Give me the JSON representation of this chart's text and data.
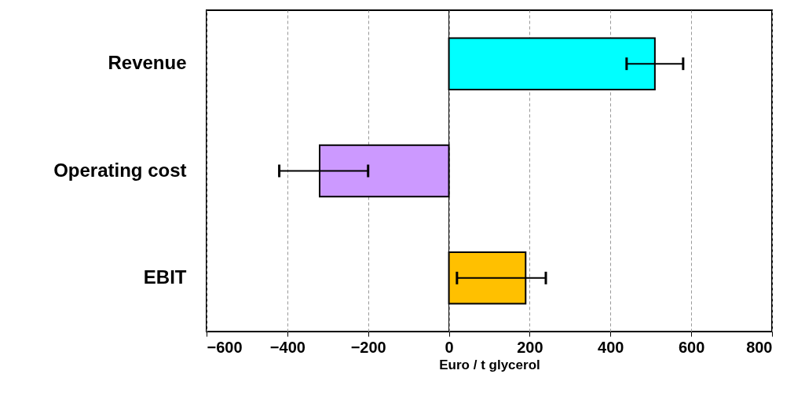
{
  "chart_data": {
    "type": "bar",
    "orientation": "horizontal",
    "xlabel": "Euro / t glycerol",
    "categories": [
      "Revenue",
      "Operating cost",
      "EBIT"
    ],
    "values": [
      510,
      -320,
      190
    ],
    "colors": [
      "#00ffff",
      "#cc99ff",
      "#ffc000"
    ],
    "errors": [
      [
        440,
        580
      ],
      [
        -420,
        -200
      ],
      [
        20,
        240
      ]
    ],
    "xlim": [
      -600,
      800
    ],
    "xticks": [
      -600,
      -400,
      -200,
      0,
      200,
      400,
      600,
      800
    ],
    "grid": "x",
    "ref_lines": [
      {
        "axis": "x",
        "value": 0,
        "color": "#000000",
        "line_style": "solid"
      }
    ]
  }
}
